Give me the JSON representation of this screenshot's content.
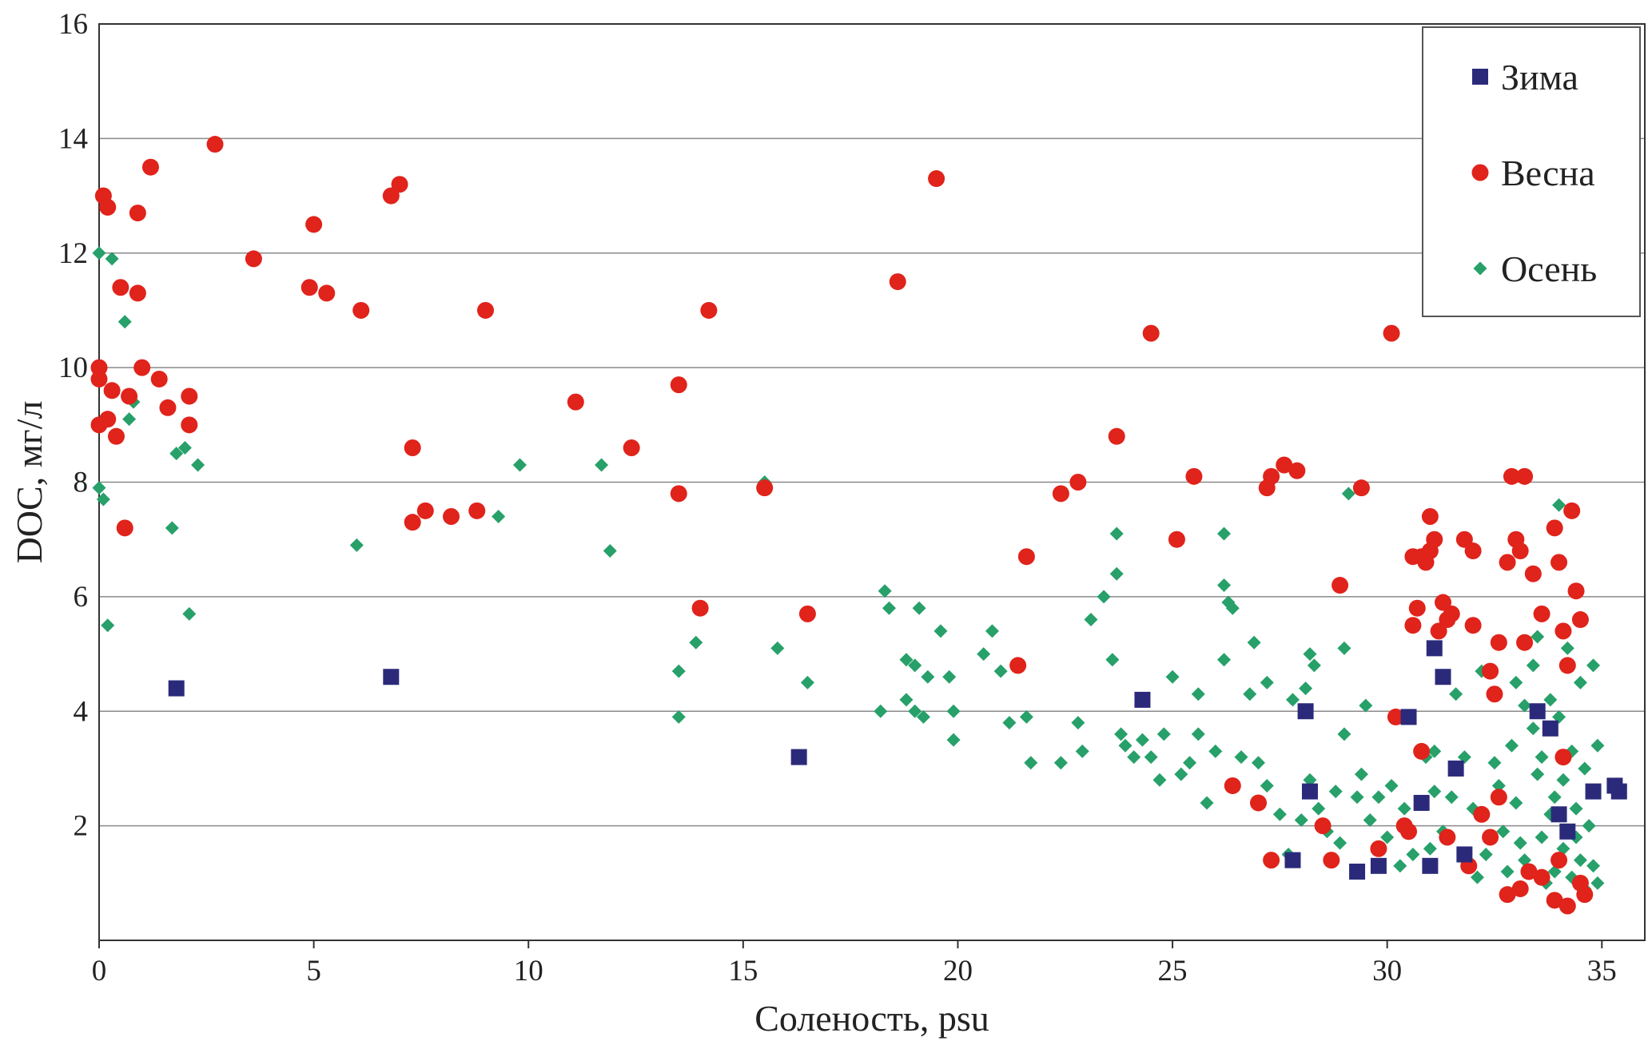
{
  "chart_data": {
    "type": "scatter",
    "title": "",
    "xlabel": "Соленость, psu",
    "ylabel": "DOC, мг/л",
    "xlim": [
      0,
      36
    ],
    "ylim": [
      0,
      16
    ],
    "x_ticks": [
      "0",
      "5",
      "10",
      "15",
      "20",
      "25",
      "30",
      "35"
    ],
    "y_ticks": [
      "2",
      "4",
      "6",
      "8",
      "10",
      "12",
      "14",
      "16"
    ],
    "grid": "horizontal",
    "legend_position": "top-right",
    "series": [
      {
        "name": "Зима",
        "marker": "square",
        "color": "#2b2a7a",
        "points": [
          [
            1.8,
            4.4
          ],
          [
            6.8,
            4.6
          ],
          [
            16.3,
            3.2
          ],
          [
            24.3,
            4.2
          ],
          [
            28.1,
            4.0
          ],
          [
            28.2,
            2.6
          ],
          [
            27.8,
            1.4
          ],
          [
            29.3,
            1.2
          ],
          [
            29.8,
            1.3
          ],
          [
            30.5,
            3.9
          ],
          [
            30.8,
            2.4
          ],
          [
            31.0,
            1.3
          ],
          [
            31.1,
            5.1
          ],
          [
            31.3,
            4.6
          ],
          [
            31.6,
            3.0
          ],
          [
            31.8,
            1.5
          ],
          [
            33.5,
            4.0
          ],
          [
            33.8,
            3.7
          ],
          [
            34.0,
            2.2
          ],
          [
            34.2,
            1.9
          ],
          [
            34.8,
            2.6
          ],
          [
            35.3,
            2.7
          ],
          [
            35.4,
            2.6
          ]
        ]
      },
      {
        "name": "Весна",
        "marker": "circle",
        "color": "#e0231b",
        "points": [
          [
            0.1,
            13.0
          ],
          [
            0.2,
            12.8
          ],
          [
            1.2,
            13.5
          ],
          [
            2.7,
            13.9
          ],
          [
            0.9,
            12.7
          ],
          [
            0.5,
            11.4
          ],
          [
            0.9,
            11.3
          ],
          [
            3.6,
            11.9
          ],
          [
            5.0,
            12.5
          ],
          [
            6.8,
            13.0
          ],
          [
            7.0,
            13.2
          ],
          [
            4.9,
            11.4
          ],
          [
            5.3,
            11.3
          ],
          [
            6.1,
            11.0
          ],
          [
            9.0,
            11.0
          ],
          [
            0.0,
            10.0
          ],
          [
            0.0,
            9.8
          ],
          [
            0.3,
            9.6
          ],
          [
            0.7,
            9.5
          ],
          [
            1.0,
            10.0
          ],
          [
            1.4,
            9.8
          ],
          [
            1.6,
            9.3
          ],
          [
            2.1,
            9.5
          ],
          [
            0.0,
            9.0
          ],
          [
            0.2,
            9.1
          ],
          [
            0.4,
            8.8
          ],
          [
            2.1,
            9.0
          ],
          [
            0.6,
            7.2
          ],
          [
            7.3,
            8.6
          ],
          [
            7.3,
            7.3
          ],
          [
            7.6,
            7.5
          ],
          [
            8.2,
            7.4
          ],
          [
            8.8,
            7.5
          ],
          [
            11.1,
            9.4
          ],
          [
            12.4,
            8.6
          ],
          [
            13.5,
            9.7
          ],
          [
            13.5,
            7.8
          ],
          [
            14.2,
            11.0
          ],
          [
            15.5,
            7.9
          ],
          [
            14.0,
            5.8
          ],
          [
            16.5,
            5.7
          ],
          [
            18.6,
            11.5
          ],
          [
            19.5,
            13.3
          ],
          [
            21.4,
            4.8
          ],
          [
            21.6,
            6.7
          ],
          [
            22.4,
            7.8
          ],
          [
            22.8,
            8.0
          ],
          [
            23.7,
            8.8
          ],
          [
            24.5,
            10.6
          ],
          [
            25.1,
            7.0
          ],
          [
            25.5,
            8.1
          ],
          [
            27.2,
            7.9
          ],
          [
            27.3,
            8.1
          ],
          [
            27.6,
            8.3
          ],
          [
            27.9,
            8.2
          ],
          [
            28.9,
            6.2
          ],
          [
            29.4,
            7.9
          ],
          [
            30.1,
            10.6
          ],
          [
            30.2,
            3.9
          ],
          [
            30.6,
            6.7
          ],
          [
            30.8,
            6.7
          ],
          [
            30.7,
            5.8
          ],
          [
            30.6,
            5.5
          ],
          [
            30.9,
            6.6
          ],
          [
            31.0,
            7.4
          ],
          [
            31.1,
            7.0
          ],
          [
            31.0,
            6.8
          ],
          [
            31.3,
            5.9
          ],
          [
            31.4,
            5.6
          ],
          [
            31.2,
            5.4
          ],
          [
            31.5,
            5.7
          ],
          [
            31.8,
            7.0
          ],
          [
            32.0,
            6.8
          ],
          [
            32.0,
            5.5
          ],
          [
            32.4,
            4.7
          ],
          [
            32.5,
            4.3
          ],
          [
            32.6,
            5.2
          ],
          [
            32.8,
            6.6
          ],
          [
            32.9,
            8.1
          ],
          [
            33.0,
            7.0
          ],
          [
            33.1,
            6.8
          ],
          [
            33.2,
            8.1
          ],
          [
            33.4,
            6.4
          ],
          [
            33.6,
            5.7
          ],
          [
            33.2,
            5.2
          ],
          [
            33.9,
            7.2
          ],
          [
            34.0,
            6.6
          ],
          [
            34.3,
            7.5
          ],
          [
            34.4,
            6.1
          ],
          [
            34.5,
            5.6
          ],
          [
            34.1,
            5.4
          ],
          [
            34.2,
            4.8
          ],
          [
            30.5,
            1.9
          ],
          [
            30.8,
            3.3
          ],
          [
            31.4,
            1.8
          ],
          [
            31.9,
            1.3
          ],
          [
            32.2,
            2.2
          ],
          [
            32.6,
            2.5
          ],
          [
            32.8,
            0.8
          ],
          [
            33.1,
            0.9
          ],
          [
            33.6,
            1.1
          ],
          [
            33.9,
            0.7
          ],
          [
            34.2,
            0.6
          ],
          [
            34.0,
            1.4
          ],
          [
            34.5,
            1.0
          ],
          [
            34.6,
            0.8
          ],
          [
            26.4,
            2.7
          ],
          [
            27.0,
            2.4
          ],
          [
            27.3,
            1.4
          ],
          [
            28.5,
            2.0
          ],
          [
            28.7,
            1.4
          ],
          [
            29.8,
            1.6
          ],
          [
            30.4,
            2.0
          ],
          [
            33.3,
            1.2
          ],
          [
            32.4,
            1.8
          ],
          [
            34.1,
            3.2
          ]
        ]
      },
      {
        "name": "Осень",
        "marker": "diamond",
        "color": "#27a06a",
        "points": [
          [
            0.0,
            12.0
          ],
          [
            0.3,
            11.9
          ],
          [
            0.6,
            10.8
          ],
          [
            0.8,
            9.4
          ],
          [
            0.7,
            9.1
          ],
          [
            1.8,
            8.5
          ],
          [
            2.0,
            8.6
          ],
          [
            2.3,
            8.3
          ],
          [
            0.0,
            7.9
          ],
          [
            0.1,
            7.7
          ],
          [
            1.7,
            7.2
          ],
          [
            2.1,
            5.7
          ],
          [
            0.2,
            5.5
          ],
          [
            6.0,
            6.9
          ],
          [
            9.3,
            7.4
          ],
          [
            9.8,
            8.3
          ],
          [
            11.7,
            8.3
          ],
          [
            11.9,
            6.8
          ],
          [
            15.5,
            8.0
          ],
          [
            13.5,
            4.7
          ],
          [
            13.5,
            3.9
          ],
          [
            13.9,
            5.2
          ],
          [
            15.8,
            5.1
          ],
          [
            16.5,
            4.5
          ],
          [
            18.3,
            6.1
          ],
          [
            18.4,
            5.8
          ],
          [
            19.1,
            5.8
          ],
          [
            18.8,
            4.9
          ],
          [
            19.0,
            4.8
          ],
          [
            19.3,
            4.6
          ],
          [
            18.8,
            4.2
          ],
          [
            19.0,
            4.0
          ],
          [
            18.2,
            4.0
          ],
          [
            19.2,
            3.9
          ],
          [
            19.6,
            5.4
          ],
          [
            19.8,
            4.6
          ],
          [
            19.9,
            4.0
          ],
          [
            19.9,
            3.5
          ],
          [
            20.6,
            5.0
          ],
          [
            20.8,
            5.4
          ],
          [
            21.0,
            4.7
          ],
          [
            21.2,
            3.8
          ],
          [
            21.6,
            3.9
          ],
          [
            21.7,
            3.1
          ],
          [
            22.4,
            3.1
          ],
          [
            22.8,
            3.8
          ],
          [
            22.9,
            3.3
          ],
          [
            23.1,
            5.6
          ],
          [
            23.4,
            6.0
          ],
          [
            23.6,
            4.9
          ],
          [
            23.7,
            7.1
          ],
          [
            23.7,
            6.4
          ],
          [
            23.8,
            3.6
          ],
          [
            23.9,
            3.4
          ],
          [
            24.1,
            3.2
          ],
          [
            24.3,
            3.5
          ],
          [
            24.5,
            3.2
          ],
          [
            24.7,
            2.8
          ],
          [
            24.8,
            3.6
          ],
          [
            25.0,
            4.6
          ],
          [
            25.2,
            2.9
          ],
          [
            25.4,
            3.1
          ],
          [
            25.6,
            3.6
          ],
          [
            25.6,
            4.3
          ],
          [
            25.8,
            2.4
          ],
          [
            26.0,
            3.3
          ],
          [
            26.2,
            6.2
          ],
          [
            26.2,
            7.1
          ],
          [
            26.3,
            5.9
          ],
          [
            26.4,
            5.8
          ],
          [
            26.2,
            4.9
          ],
          [
            26.6,
            3.2
          ],
          [
            26.8,
            4.3
          ],
          [
            27.0,
            3.1
          ],
          [
            27.2,
            2.7
          ],
          [
            26.9,
            5.2
          ],
          [
            27.2,
            4.5
          ],
          [
            27.5,
            2.2
          ],
          [
            27.7,
            1.5
          ],
          [
            27.8,
            4.2
          ],
          [
            28.1,
            4.4
          ],
          [
            28.2,
            5.0
          ],
          [
            28.3,
            4.8
          ],
          [
            28.2,
            2.8
          ],
          [
            28.4,
            2.3
          ],
          [
            28.6,
            1.9
          ],
          [
            28.9,
            1.7
          ],
          [
            29.0,
            3.6
          ],
          [
            29.0,
            5.1
          ],
          [
            29.1,
            7.8
          ],
          [
            29.3,
            2.5
          ],
          [
            29.4,
            2.9
          ],
          [
            29.5,
            4.1
          ],
          [
            29.6,
            2.1
          ],
          [
            29.8,
            2.5
          ],
          [
            30.0,
            1.8
          ],
          [
            30.1,
            2.7
          ],
          [
            30.4,
            2.3
          ],
          [
            30.6,
            1.5
          ],
          [
            30.9,
            3.2
          ],
          [
            31.1,
            2.6
          ],
          [
            31.1,
            3.3
          ],
          [
            31.3,
            1.9
          ],
          [
            31.5,
            2.5
          ],
          [
            31.6,
            4.3
          ],
          [
            31.8,
            3.2
          ],
          [
            32.0,
            2.3
          ],
          [
            32.2,
            4.7
          ],
          [
            32.3,
            1.5
          ],
          [
            32.5,
            3.1
          ],
          [
            32.6,
            2.7
          ],
          [
            32.7,
            1.9
          ],
          [
            32.9,
            3.4
          ],
          [
            33.0,
            2.4
          ],
          [
            33.0,
            4.5
          ],
          [
            33.2,
            4.1
          ],
          [
            33.2,
            1.4
          ],
          [
            33.4,
            3.7
          ],
          [
            33.4,
            4.8
          ],
          [
            33.5,
            5.3
          ],
          [
            33.5,
            2.9
          ],
          [
            33.6,
            1.8
          ],
          [
            33.6,
            3.2
          ],
          [
            33.8,
            4.2
          ],
          [
            33.8,
            2.2
          ],
          [
            33.9,
            1.2
          ],
          [
            34.0,
            7.6
          ],
          [
            34.0,
            3.9
          ],
          [
            34.1,
            2.8
          ],
          [
            34.1,
            1.6
          ],
          [
            34.2,
            5.1
          ],
          [
            34.3,
            3.3
          ],
          [
            34.3,
            1.1
          ],
          [
            34.4,
            2.3
          ],
          [
            34.5,
            4.5
          ],
          [
            34.5,
            1.4
          ],
          [
            34.6,
            3.0
          ],
          [
            34.7,
            2.0
          ],
          [
            34.8,
            4.8
          ],
          [
            34.8,
            1.3
          ],
          [
            34.9,
            3.4
          ],
          [
            34.9,
            1.0
          ],
          [
            33.7,
            1.0
          ],
          [
            33.1,
            1.7
          ],
          [
            32.8,
            1.2
          ],
          [
            34.4,
            1.8
          ],
          [
            33.9,
            2.5
          ],
          [
            34.6,
            0.9
          ],
          [
            28.0,
            2.1
          ],
          [
            28.8,
            2.6
          ],
          [
            30.3,
            1.3
          ],
          [
            31.0,
            1.6
          ],
          [
            32.1,
            1.1
          ]
        ]
      }
    ]
  }
}
